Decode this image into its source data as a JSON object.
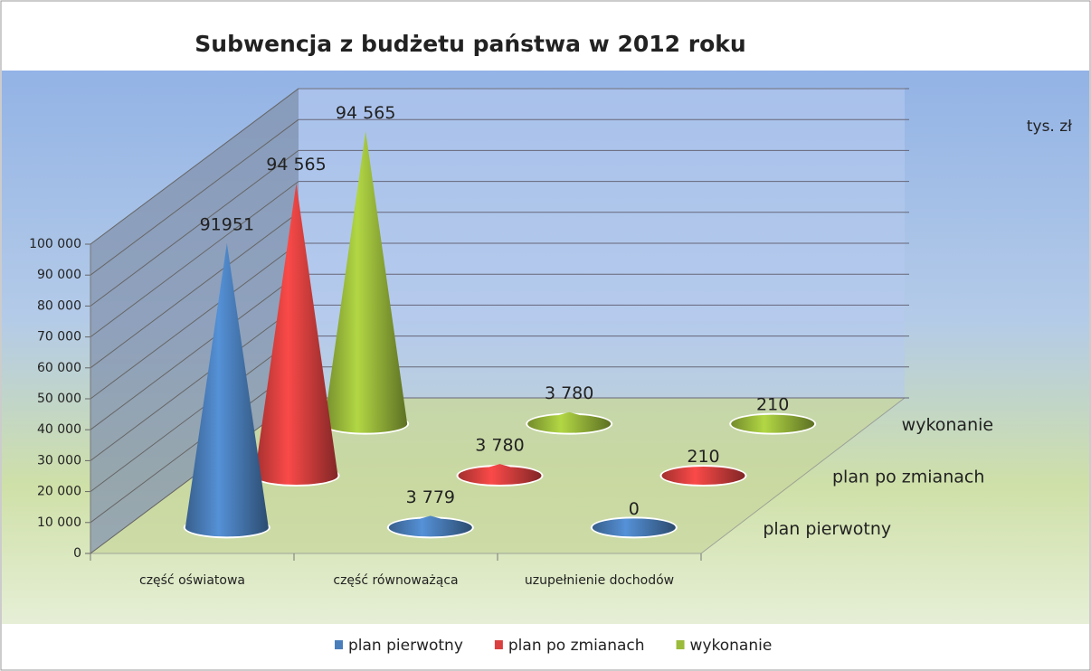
{
  "chart_data": {
    "type": "cone3d",
    "title": "Subwencja z budżetu państwa w 2012 roku",
    "unit_label": "tys. zł",
    "categories": [
      "część oświatowa",
      "część równoważąca",
      "uzupełnienie dochodów"
    ],
    "series": [
      {
        "name": "plan pierwotny",
        "color": "#4a7ebb",
        "values": [
          91951,
          3779,
          0
        ],
        "value_labels": [
          "91951",
          "3 779",
          "0"
        ]
      },
      {
        "name": "plan po zmianach",
        "color": "#d9403f",
        "values": [
          94565,
          3780,
          210
        ],
        "value_labels": [
          "94 565",
          "3 780",
          "210"
        ]
      },
      {
        "name": "wykonanie",
        "color": "#9bbb3b",
        "values": [
          94565,
          3780,
          210
        ],
        "value_labels": [
          "94 565",
          "3 780",
          "210"
        ]
      }
    ],
    "ylim": [
      0,
      100000
    ],
    "yticks": [
      0,
      {
        "value": 10000,
        "label": "10 000"
      },
      {
        "value": 20000,
        "label": "20 000"
      },
      {
        "value": 30000,
        "label": "30 000"
      },
      {
        "value": 40000,
        "label": "40 000"
      },
      {
        "value": 50000,
        "label": "50 000"
      },
      {
        "value": 60000,
        "label": "60 000"
      },
      {
        "value": 70000,
        "label": "70 000"
      },
      {
        "value": 80000,
        "label": "80 000"
      },
      {
        "value": 90000,
        "label": "90 000"
      },
      {
        "value": 100000,
        "label": "100 000"
      }
    ],
    "grid": true,
    "legend": "bottom"
  }
}
